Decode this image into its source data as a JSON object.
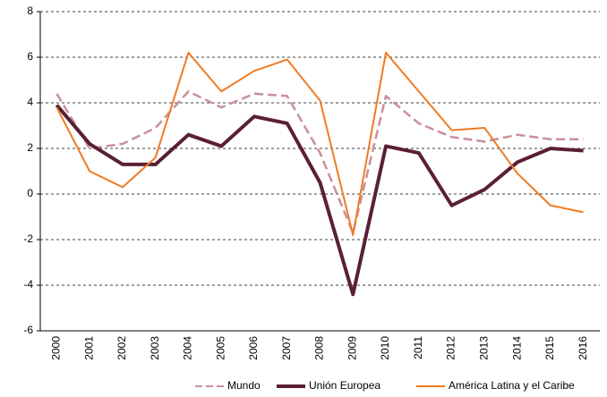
{
  "chart_data": {
    "type": "line",
    "categories": [
      "2000",
      "2001",
      "2002",
      "2003",
      "2004",
      "2005",
      "2006",
      "2007",
      "2008",
      "2009",
      "2010",
      "2011",
      "2012",
      "2013",
      "2014",
      "2015",
      "2016"
    ],
    "series": [
      {
        "name": "Mundo",
        "color": "#c98f99",
        "dash": true,
        "values": [
          4.4,
          2.0,
          2.2,
          2.9,
          4.5,
          3.8,
          4.4,
          4.3,
          1.8,
          -1.7,
          4.3,
          3.1,
          2.5,
          2.3,
          2.6,
          2.4,
          2.4
        ]
      },
      {
        "name": "Unión Europea",
        "color": "#5a1f35",
        "dash": false,
        "values": [
          3.9,
          2.2,
          1.3,
          1.3,
          2.6,
          2.1,
          3.4,
          3.1,
          0.5,
          -4.4,
          2.1,
          1.8,
          -0.5,
          0.2,
          1.4,
          2.0,
          1.9
        ]
      },
      {
        "name": "América Latina y el Caribe",
        "color": "#f07b22",
        "dash": false,
        "values": [
          3.8,
          1.0,
          0.3,
          1.6,
          6.2,
          4.5,
          5.4,
          5.9,
          4.1,
          -1.8,
          6.2,
          4.5,
          2.8,
          2.9,
          0.9,
          -0.5,
          -0.8
        ]
      }
    ],
    "ylim": [
      -6,
      8
    ],
    "yticks": [
      -6,
      -4,
      -2,
      0,
      2,
      4,
      6,
      8
    ],
    "grid": true
  }
}
